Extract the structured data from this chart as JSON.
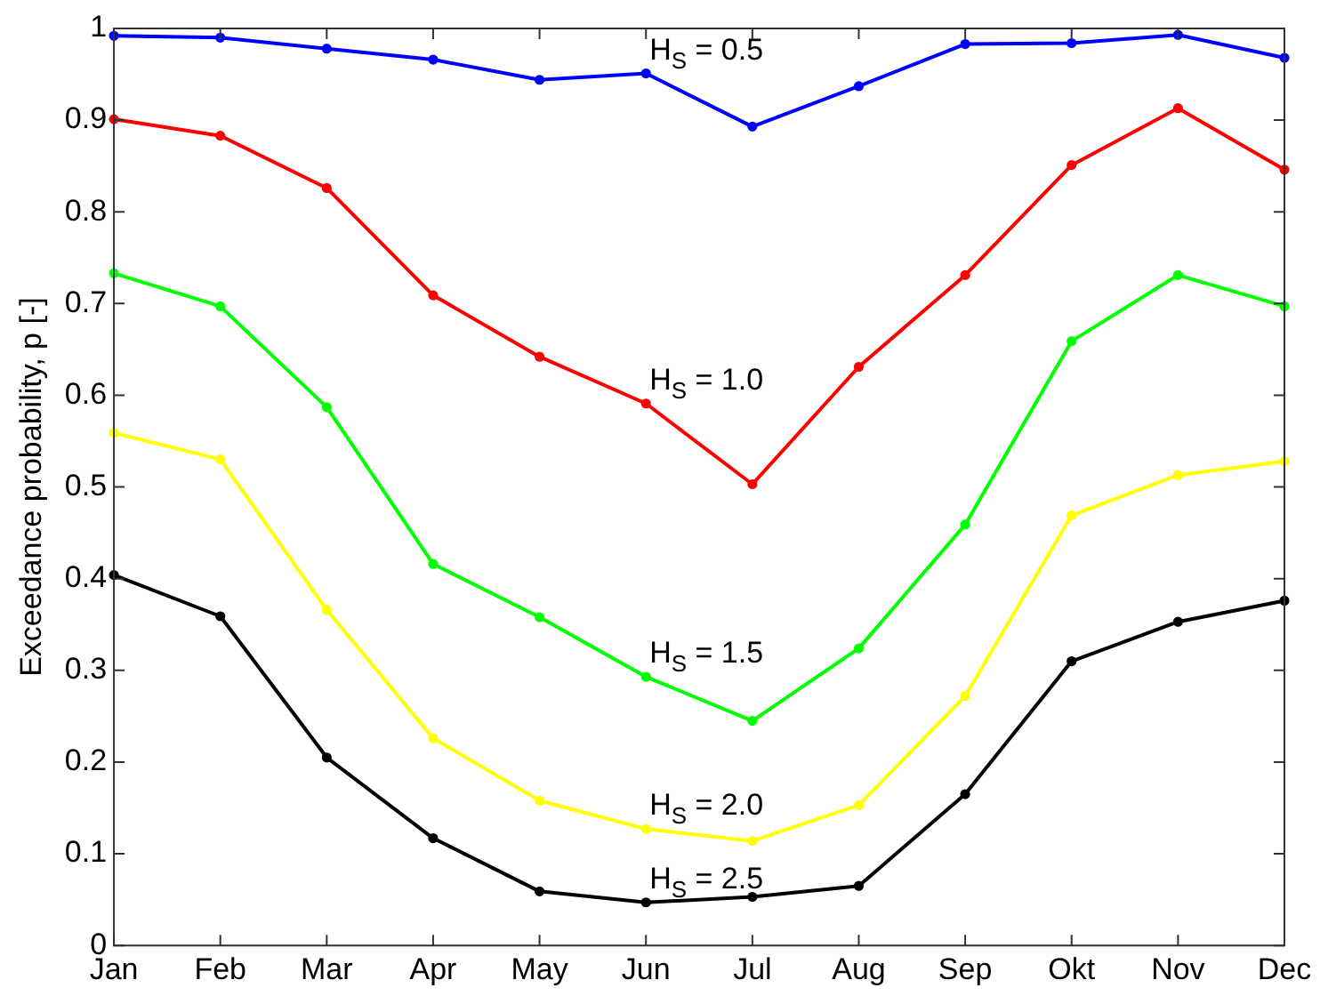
{
  "chart_data": {
    "type": "line",
    "ylabel": "Exceedance probability, p [-]",
    "categories": [
      "Jan",
      "Feb",
      "Mar",
      "Apr",
      "May",
      "Jun",
      "Jul",
      "Aug",
      "Sep",
      "Okt",
      "Nov",
      "Dec"
    ],
    "ylim": [
      0,
      1
    ],
    "yticks": [
      0,
      0.1,
      0.2,
      0.3,
      0.4,
      0.5,
      0.6,
      0.7,
      0.8,
      0.9,
      1
    ],
    "grid": false,
    "marker": "circle",
    "line_style": "solid",
    "series": [
      {
        "name": "H$_{S}$ = 0.5",
        "color": "#0000ff",
        "values": [
          0.992,
          0.99,
          0.978,
          0.966,
          0.944,
          0.951,
          0.893,
          0.937,
          0.983,
          0.984,
          0.993,
          0.968
        ]
      },
      {
        "name": "H$_{S}$ = 1.0",
        "color": "#ff0000",
        "values": [
          0.901,
          0.883,
          0.826,
          0.709,
          0.642,
          0.591,
          0.503,
          0.631,
          0.731,
          0.851,
          0.913,
          0.846
        ]
      },
      {
        "name": "H$_{S}$ = 1.5",
        "color": "#00ff00",
        "values": [
          0.733,
          0.697,
          0.587,
          0.416,
          0.358,
          0.293,
          0.245,
          0.324,
          0.459,
          0.659,
          0.731,
          0.697
        ]
      },
      {
        "name": "H$_{S}$ = 2.0",
        "color": "#ffff00",
        "values": [
          0.559,
          0.53,
          0.366,
          0.226,
          0.158,
          0.127,
          0.114,
          0.153,
          0.272,
          0.469,
          0.513,
          0.528
        ]
      },
      {
        "name": "H$_{S}$ = 2.5",
        "color": "#000000",
        "values": [
          0.404,
          0.359,
          0.205,
          0.117,
          0.059,
          0.047,
          0.053,
          0.065,
          0.165,
          0.31,
          0.353,
          0.376
        ]
      }
    ]
  }
}
